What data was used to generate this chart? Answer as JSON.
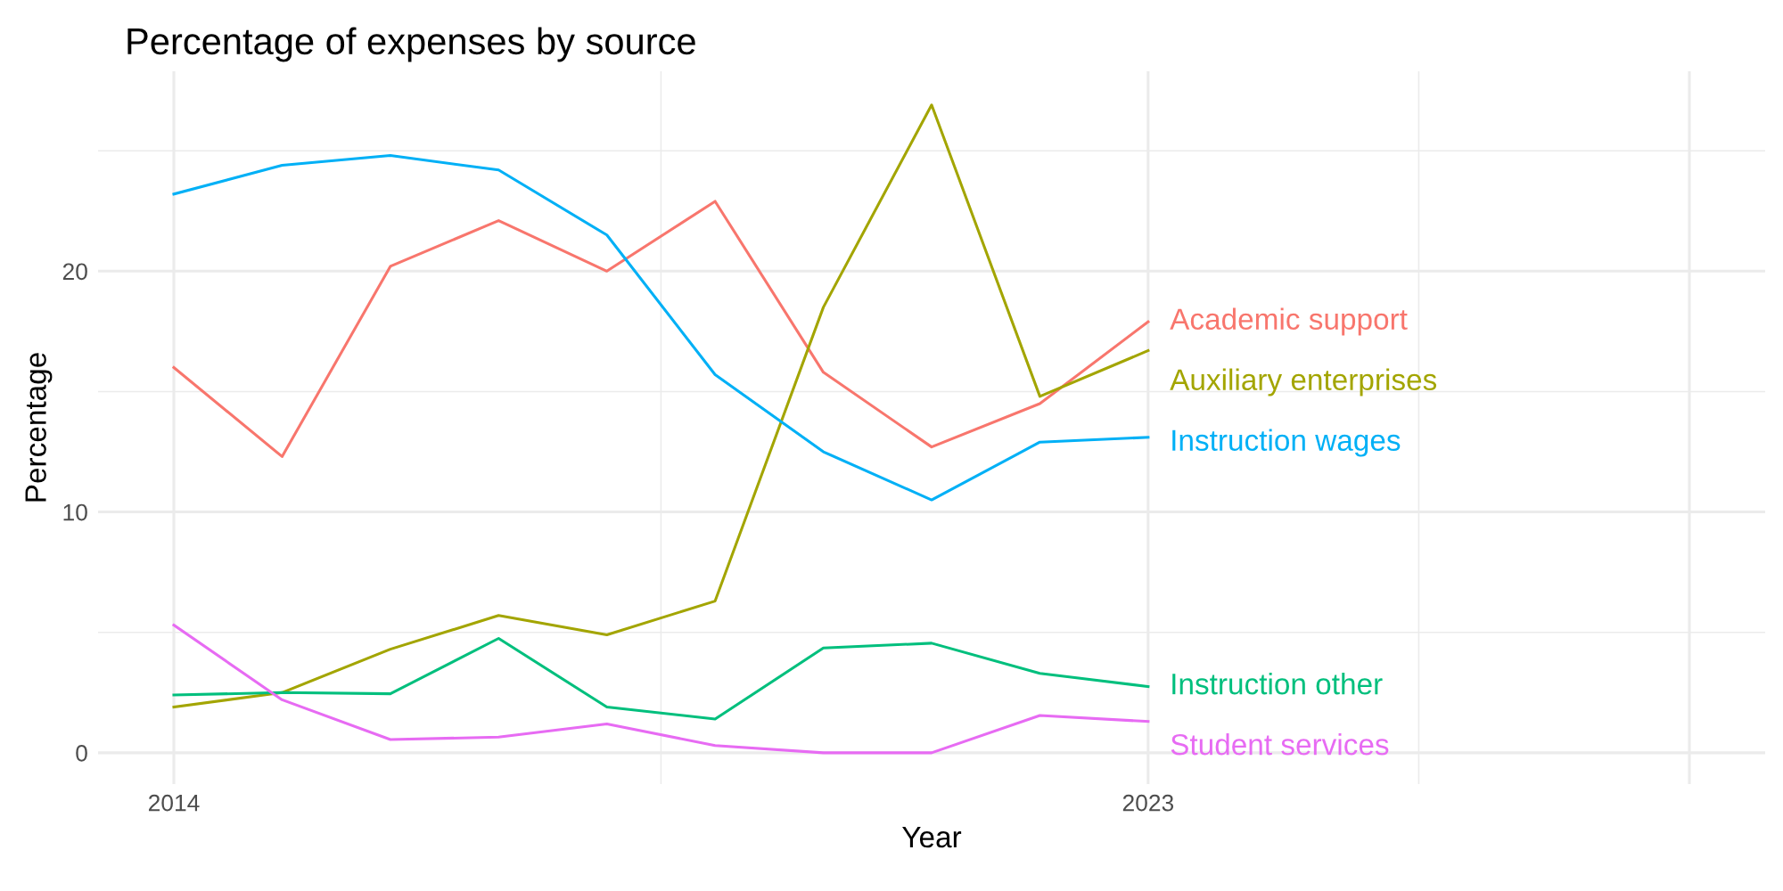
{
  "chart_data": {
    "type": "line",
    "title": "Percentage of expenses by source",
    "xlabel": "Year",
    "ylabel": "Percentage",
    "x": [
      2014,
      2015,
      2016,
      2017,
      2018,
      2019,
      2020,
      2021,
      2022,
      2023
    ],
    "xlim": [
      2013.3,
      2028.7
    ],
    "xticks": [
      2014,
      2023,
      {
        "value": 2028,
        "label": null
      }
    ],
    "ylim": [
      -1.3,
      28.3
    ],
    "yticks": [
      0,
      10,
      20
    ],
    "grid": true,
    "legend": false,
    "series": [
      {
        "name": "Academic support",
        "color": "#f8766d",
        "values": [
          16.0,
          12.3,
          20.2,
          22.1,
          20.0,
          22.9,
          15.8,
          12.7,
          14.5,
          17.9
        ]
      },
      {
        "name": "Auxiliary enterprises",
        "color": "#a3a500",
        "values": [
          1.9,
          2.5,
          4.3,
          5.7,
          4.9,
          6.3,
          18.5,
          26.9,
          14.8,
          16.7
        ]
      },
      {
        "name": "Instruction wages",
        "color": "#00b0f6",
        "values": [
          23.2,
          24.4,
          24.8,
          24.2,
          21.5,
          15.7,
          12.5,
          10.5,
          12.9,
          13.1
        ]
      },
      {
        "name": "Instruction other",
        "color": "#00bf7d",
        "values": [
          2.4,
          2.5,
          2.45,
          4.75,
          1.9,
          1.4,
          4.35,
          4.55,
          3.3,
          2.75
        ]
      },
      {
        "name": "Student services",
        "color": "#e76bf3",
        "values": [
          5.3,
          2.2,
          0.55,
          0.65,
          1.2,
          0.3,
          0.0,
          0.0,
          1.55,
          1.3
        ]
      }
    ]
  }
}
